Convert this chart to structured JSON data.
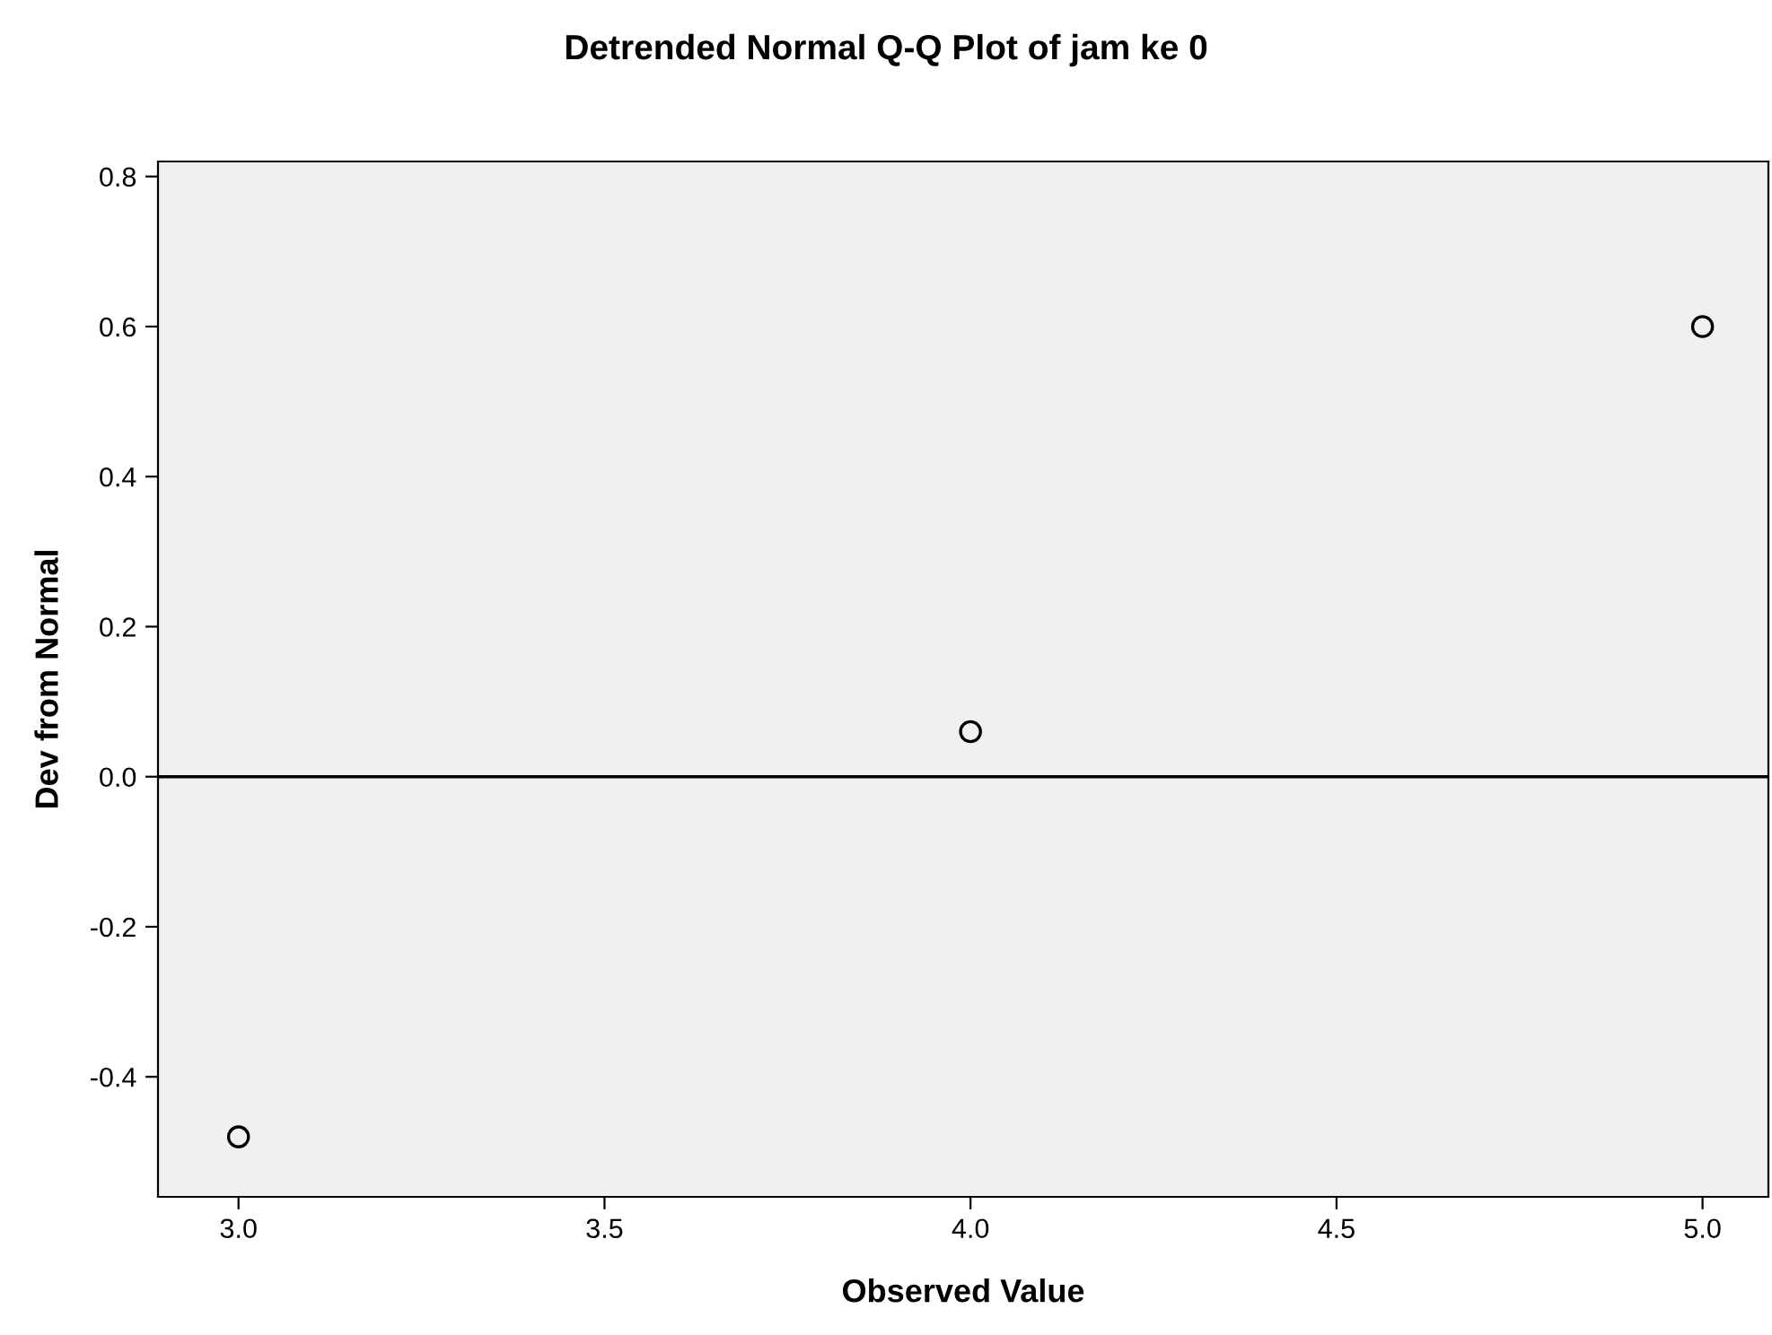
{
  "chart_data": {
    "type": "scatter",
    "title": "Detrended Normal Q-Q Plot of jam ke 0",
    "xlabel": "Observed Value",
    "ylabel": "Dev from Normal",
    "x": [
      3.0,
      4.0,
      5.0
    ],
    "values": [
      -0.48,
      0.06,
      0.6
    ],
    "color": "#000000",
    "marker": "circle",
    "grid": false,
    "xlim": [
      2.89,
      5.09
    ],
    "xticks": [
      {
        "value": 3.0,
        "label": "3.0"
      },
      {
        "value": 3.5,
        "label": "3.5"
      },
      {
        "value": 4.0,
        "label": "4.0"
      },
      {
        "value": 4.5,
        "label": "4.5"
      },
      {
        "value": 5.0,
        "label": "5.0"
      }
    ],
    "ylim": [
      -0.56,
      0.82
    ],
    "yticks": [
      {
        "value": -0.4,
        "label": "-0.4"
      },
      {
        "value": -0.2,
        "label": "-0.2"
      },
      {
        "value": 0.0,
        "label": "0.0"
      },
      {
        "value": 0.2,
        "label": "0.2"
      },
      {
        "value": 0.4,
        "label": "0.4"
      },
      {
        "value": 0.6,
        "label": "0.6"
      },
      {
        "value": 0.8,
        "label": "0.8"
      }
    ],
    "ref_lines": [
      {
        "axis": "y",
        "value": 0.0,
        "color": "#000000"
      }
    ]
  }
}
